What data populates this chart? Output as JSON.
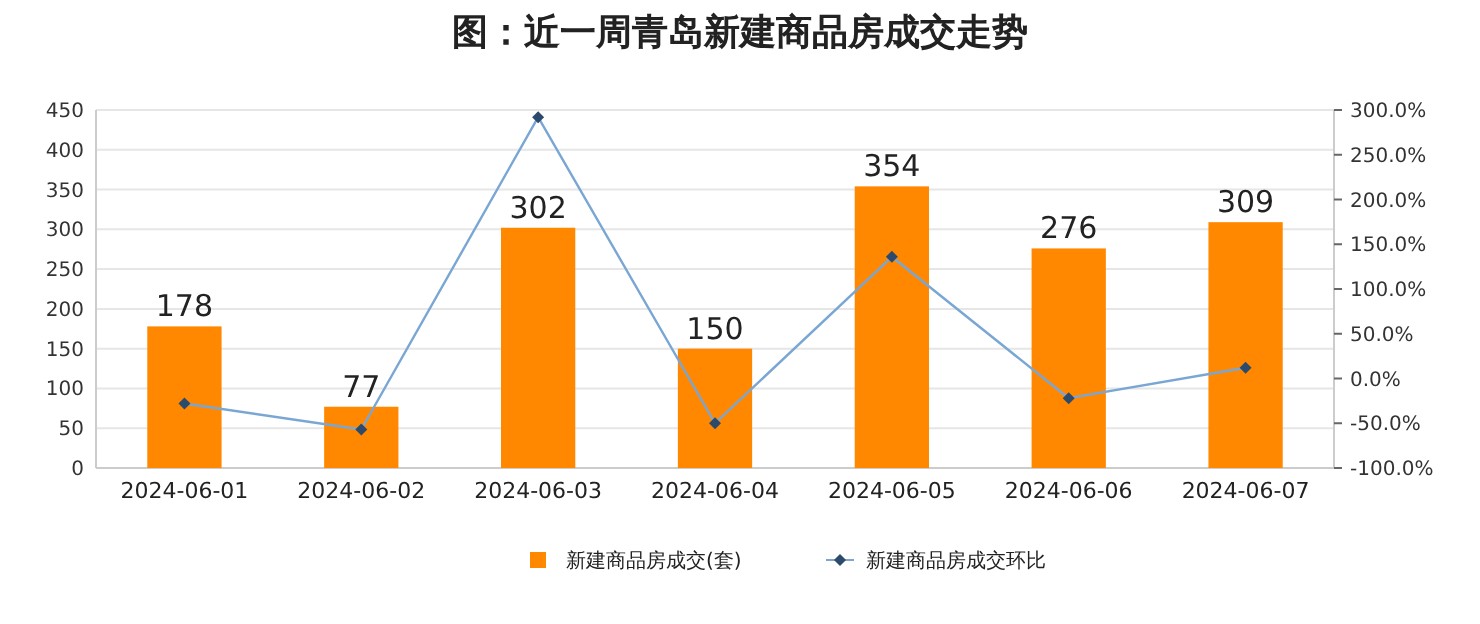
{
  "chart_data": {
    "type": "bar",
    "title": "图：近一周青岛新建商品房成交走势",
    "categories": [
      "2024-06-01",
      "2024-06-02",
      "2024-06-03",
      "2024-06-04",
      "2024-06-05",
      "2024-06-06",
      "2024-06-07"
    ],
    "series": [
      {
        "name": "新建商品房成交(套)",
        "color": "#ff8800",
        "values": [
          178,
          77,
          302,
          150,
          354,
          276,
          309
        ],
        "value_labels": [
          "178",
          "77",
          "302",
          "150",
          "354",
          "276",
          "309"
        ]
      },
      {
        "name": "新建商品房成交环比",
        "type": "line",
        "axis": "y2",
        "color": "#7aa6d4",
        "marker": "diamond",
        "values": [
          -28,
          -57,
          292,
          -50,
          136,
          -22,
          12
        ]
      }
    ],
    "ylim": [
      0,
      450
    ],
    "yticks": [
      0,
      50,
      100,
      150,
      200,
      250,
      300,
      350,
      400,
      450
    ],
    "y2lim": [
      -100,
      300
    ],
    "y2ticks": [
      {
        "value": -100,
        "label": "-100.0%"
      },
      {
        "value": -50,
        "label": "-50.0%"
      },
      {
        "value": 0,
        "label": "0.0%"
      },
      {
        "value": 50,
        "label": "50.0%"
      },
      {
        "value": 100,
        "label": "100.0%"
      },
      {
        "value": 150,
        "label": "150.0%"
      },
      {
        "value": 200,
        "label": "200.0%"
      },
      {
        "value": 250,
        "label": "250.0%"
      },
      {
        "value": 300,
        "label": "300.0%"
      }
    ],
    "grid": "y",
    "legend": "bottom"
  }
}
